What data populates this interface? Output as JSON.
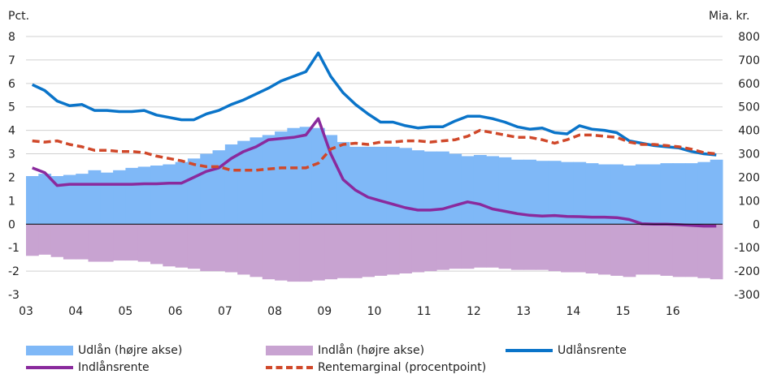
{
  "chart_data": {
    "type": "bar+line",
    "left_axis_label": "Pct.",
    "right_axis_label": "Mia. kr.",
    "ylim_left": [
      -3,
      8
    ],
    "ylim_right": [
      -300,
      800
    ],
    "left_ticks": [
      "8",
      "7",
      "6",
      "5",
      "4",
      "3",
      "2",
      "1",
      "0",
      "-1",
      "-2",
      "-3"
    ],
    "right_ticks": [
      "800",
      "700",
      "600",
      "500",
      "400",
      "300",
      "200",
      "100",
      "0",
      "-100",
      "-200",
      "-300"
    ],
    "x_ticks": [
      "03",
      "04",
      "05",
      "06",
      "07",
      "08",
      "09",
      "10",
      "11",
      "12",
      "13",
      "14",
      "15",
      "16"
    ],
    "x_start_year": 2003,
    "frequency": "quarterly",
    "grid": true,
    "colors": {
      "udlaan": "#7fb8f7",
      "indlaan": "#c8a3d1",
      "udlaansrente": "#0a74c9",
      "indlaansrente": "#8a2a9d",
      "rentemarginal": "#d0482a"
    },
    "series": [
      {
        "name": "Udlån (højre akse)",
        "key": "udlaan",
        "type": "bar",
        "axis": "right",
        "values": [
          205,
          215,
          205,
          210,
          215,
          230,
          220,
          230,
          240,
          245,
          250,
          255,
          265,
          280,
          300,
          315,
          340,
          355,
          370,
          380,
          395,
          410,
          415,
          410,
          380,
          350,
          330,
          330,
          330,
          330,
          325,
          315,
          310,
          310,
          300,
          290,
          295,
          290,
          285,
          275,
          275,
          270,
          270,
          265,
          265,
          260,
          255,
          255,
          250,
          255,
          255,
          260,
          260,
          260,
          265,
          275
        ]
      },
      {
        "name": "Indlån (højre akse)",
        "key": "indlaan",
        "type": "bar",
        "axis": "right",
        "values": [
          -135,
          -130,
          -140,
          -150,
          -150,
          -160,
          -160,
          -155,
          -155,
          -160,
          -170,
          -180,
          -185,
          -190,
          -200,
          -200,
          -205,
          -215,
          -225,
          -235,
          -240,
          -245,
          -245,
          -240,
          -235,
          -230,
          -230,
          -225,
          -220,
          -215,
          -210,
          -205,
          -200,
          -195,
          -190,
          -190,
          -185,
          -185,
          -190,
          -195,
          -195,
          -195,
          -200,
          -205,
          -205,
          -210,
          -215,
          -220,
          -225,
          -215,
          -215,
          -220,
          -225,
          -225,
          -230,
          -235
        ]
      },
      {
        "name": "Udlånsrente",
        "key": "udlaansrente",
        "type": "line",
        "axis": "left",
        "values": [
          5.95,
          5.7,
          5.25,
          5.05,
          5.1,
          4.85,
          4.85,
          4.8,
          4.8,
          4.85,
          4.65,
          4.55,
          4.45,
          4.45,
          4.7,
          4.85,
          5.1,
          5.3,
          5.55,
          5.8,
          6.1,
          6.3,
          6.5,
          7.3,
          6.3,
          5.6,
          5.1,
          4.7,
          4.35,
          4.35,
          4.2,
          4.1,
          4.15,
          4.15,
          4.4,
          4.6,
          4.6,
          4.5,
          4.35,
          4.15,
          4.05,
          4.1,
          3.9,
          3.85,
          4.2,
          4.05,
          4.0,
          3.9,
          3.55,
          3.45,
          3.35,
          3.3,
          3.25,
          3.1,
          3.0,
          2.95
        ]
      },
      {
        "name": "Indlånsrente",
        "key": "indlaansrente",
        "type": "line",
        "axis": "left",
        "values": [
          2.4,
          2.2,
          1.65,
          1.7,
          1.7,
          1.7,
          1.7,
          1.7,
          1.7,
          1.72,
          1.72,
          1.75,
          1.75,
          2.0,
          2.25,
          2.4,
          2.8,
          3.1,
          3.3,
          3.6,
          3.65,
          3.7,
          3.8,
          4.5,
          3.0,
          1.9,
          1.45,
          1.15,
          1.0,
          0.85,
          0.7,
          0.6,
          0.6,
          0.65,
          0.8,
          0.95,
          0.85,
          0.65,
          0.55,
          0.45,
          0.38,
          0.35,
          0.37,
          0.33,
          0.32,
          0.3,
          0.3,
          0.28,
          0.2,
          0.02,
          0.0,
          0.0,
          -0.02,
          -0.05,
          -0.08,
          -0.08
        ]
      },
      {
        "name": "Rentemarginal (procentpoint)",
        "key": "rentemarginal",
        "type": "line",
        "dashed": true,
        "axis": "left",
        "values": [
          3.55,
          3.5,
          3.55,
          3.4,
          3.3,
          3.15,
          3.15,
          3.1,
          3.1,
          3.05,
          2.9,
          2.8,
          2.7,
          2.55,
          2.45,
          2.45,
          2.3,
          2.3,
          2.3,
          2.35,
          2.4,
          2.4,
          2.4,
          2.6,
          3.2,
          3.4,
          3.45,
          3.4,
          3.5,
          3.5,
          3.55,
          3.55,
          3.5,
          3.55,
          3.6,
          3.75,
          4.0,
          3.9,
          3.8,
          3.7,
          3.7,
          3.6,
          3.45,
          3.6,
          3.8,
          3.8,
          3.75,
          3.7,
          3.5,
          3.4,
          3.4,
          3.35,
          3.3,
          3.2,
          3.05,
          3.0
        ]
      }
    ]
  }
}
